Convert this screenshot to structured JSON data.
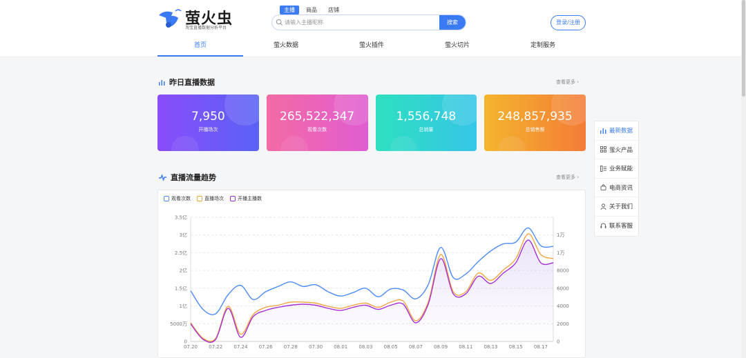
{
  "brand": {
    "name": "萤火虫",
    "tagline": "淘宝直播数据分析平台"
  },
  "search": {
    "tabs": [
      "主播",
      "商品",
      "店铺"
    ],
    "active_tab": 0,
    "placeholder": "请输入主播昵称",
    "button": "搜索"
  },
  "login": "登录/注册",
  "nav": {
    "items": [
      "首页",
      "萤火数据",
      "萤火插件",
      "萤火切片",
      "定制服务"
    ],
    "active": 0
  },
  "yesterday": {
    "title": "昨日直播数据",
    "more": "查看更多",
    "cards": [
      {
        "value": "7,950",
        "label": "开播场次"
      },
      {
        "value": "265,522,347",
        "label": "观看次数"
      },
      {
        "value": "1,556,748",
        "label": "总销量"
      },
      {
        "value": "248,857,935",
        "label": "总销售额"
      }
    ]
  },
  "trend": {
    "title": "直播流量趋势",
    "more": "查看更多"
  },
  "sidebar": {
    "items": [
      "最新数据",
      "萤火产品",
      "业务赋能",
      "电商资讯",
      "关于我们",
      "联系客服"
    ],
    "active": 0
  },
  "colors": {
    "primary": "#3a7bf3",
    "views": "#4b8af6",
    "live": "#f3a542",
    "anchors": "#a52fd6"
  },
  "chart_data": {
    "type": "line",
    "x": [
      "07.20",
      "07.21",
      "07.22",
      "07.23",
      "07.24",
      "07.25",
      "07.26",
      "07.27",
      "07.28",
      "07.29",
      "07.30",
      "07.31",
      "08.01",
      "08.02",
      "08.03",
      "08.04",
      "08.05",
      "08.06",
      "08.07",
      "08.08",
      "08.09",
      "08.10",
      "08.11",
      "08.12",
      "08.13",
      "08.14",
      "08.15",
      "08.16",
      "08.17",
      "08.18"
    ],
    "left_axis": {
      "ticks": [
        "0",
        "5000万",
        "1亿",
        "1.5亿",
        "2亿",
        "2.5亿",
        "3亿",
        "3.5亿"
      ],
      "ylim": [
        0,
        350000000
      ]
    },
    "right_axis": {
      "ticks": [
        "0",
        "2000",
        "4000",
        "6000",
        "8000",
        "1万",
        "1万"
      ],
      "ylim": [
        0,
        12000
      ]
    },
    "series": [
      {
        "name": "观看次数",
        "axis": "left",
        "values": [
          143000000,
          90000000,
          78000000,
          132000000,
          158000000,
          118000000,
          140000000,
          155000000,
          168000000,
          155000000,
          160000000,
          140000000,
          128000000,
          138000000,
          150000000,
          126000000,
          148000000,
          145000000,
          120000000,
          160000000,
          265000000,
          180000000,
          190000000,
          225000000,
          255000000,
          275000000,
          280000000,
          320000000,
          270000000,
          268000000
        ]
      },
      {
        "name": "直播场次",
        "axis": "right",
        "values": [
          1800,
          300,
          300,
          3400,
          700,
          2600,
          3300,
          3500,
          3800,
          3800,
          3700,
          3400,
          3200,
          3500,
          3700,
          3300,
          3800,
          3900,
          2000,
          3800,
          8400,
          4800,
          4800,
          6600,
          5900,
          6900,
          8000,
          10400,
          8400,
          8000
        ]
      },
      {
        "name": "开播主播数",
        "axis": "right",
        "values": [
          1700,
          200,
          200,
          3200,
          400,
          2400,
          3000,
          3300,
          3500,
          3600,
          3500,
          3200,
          3000,
          3300,
          3500,
          3100,
          3500,
          3600,
          1800,
          3600,
          8000,
          4600,
          4600,
          6300,
          5600,
          6600,
          7600,
          9800,
          7600,
          7600
        ]
      }
    ]
  }
}
